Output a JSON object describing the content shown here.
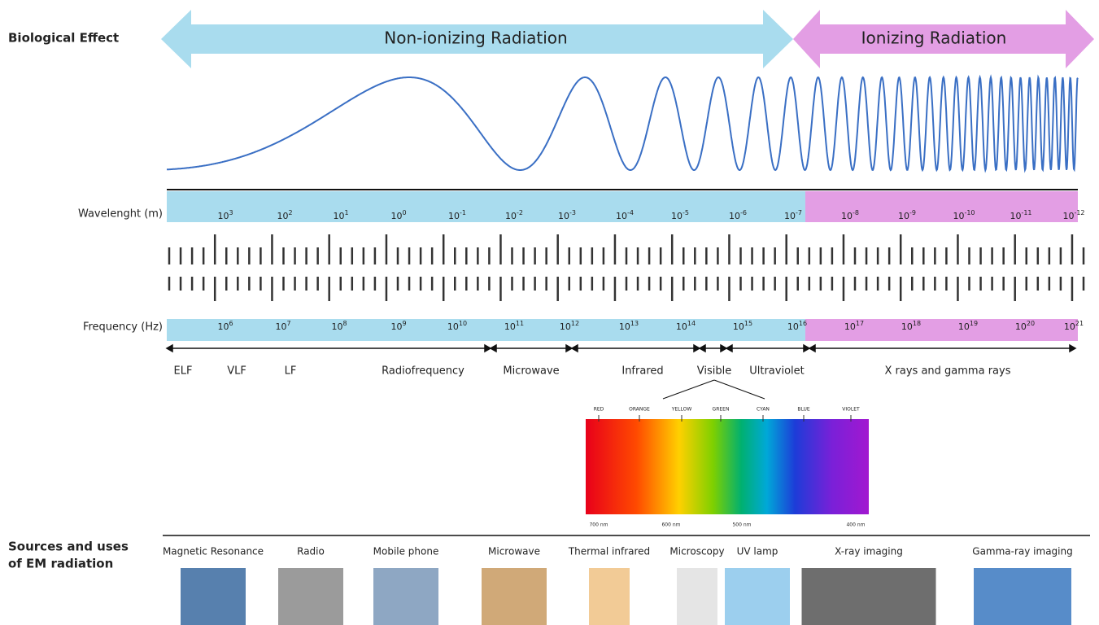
{
  "header": {
    "biological_effect": "Biological Effect",
    "non_ionizing": "Non-ionizing Radiation",
    "ionizing": "Ionizing Radiation"
  },
  "wavelength": {
    "label": "Wavelenght (m)",
    "ticks": [
      {
        "base": "10",
        "exponent": "3"
      },
      {
        "base": "10",
        "exponent": "2"
      },
      {
        "base": "10",
        "exponent": "1"
      },
      {
        "base": "10",
        "exponent": "0"
      },
      {
        "base": "10",
        "exponent": "-1"
      },
      {
        "base": "10",
        "exponent": "-2"
      },
      {
        "base": "10",
        "exponent": "-3"
      },
      {
        "base": "10",
        "exponent": "-4"
      },
      {
        "base": "10",
        "exponent": "-5"
      },
      {
        "base": "10",
        "exponent": "-6"
      },
      {
        "base": "10",
        "exponent": "-7"
      },
      {
        "base": "10",
        "exponent": "-8"
      },
      {
        "base": "10",
        "exponent": "-9"
      },
      {
        "base": "10",
        "exponent": "-10"
      },
      {
        "base": "10",
        "exponent": "-11"
      },
      {
        "base": "10",
        "exponent": "-12"
      }
    ]
  },
  "frequency": {
    "label": "Frequency (Hz)",
    "ticks": [
      {
        "base": "10",
        "exponent": "6"
      },
      {
        "base": "10",
        "exponent": "7"
      },
      {
        "base": "10",
        "exponent": "8"
      },
      {
        "base": "10",
        "exponent": "9"
      },
      {
        "base": "10",
        "exponent": "10"
      },
      {
        "base": "10",
        "exponent": "11"
      },
      {
        "base": "10",
        "exponent": "12"
      },
      {
        "base": "10",
        "exponent": "13"
      },
      {
        "base": "10",
        "exponent": "14"
      },
      {
        "base": "10",
        "exponent": "15"
      },
      {
        "base": "10",
        "exponent": "16"
      },
      {
        "base": "10",
        "exponent": "17"
      },
      {
        "base": "10",
        "exponent": "18"
      },
      {
        "base": "10",
        "exponent": "19"
      },
      {
        "base": "10",
        "exponent": "20"
      },
      {
        "base": "10",
        "exponent": "21"
      }
    ]
  },
  "bands": [
    "ELF",
    "VLF",
    "LF",
    "Radiofrequency",
    "Microwave",
    "Infrared",
    "Visible",
    "Ultraviolet",
    "X rays and gamma rays"
  ],
  "visible_spectrum": {
    "colors": [
      "RED",
      "ORANGE",
      "YELLOW",
      "GREEN",
      "CYAN",
      "BLUE",
      "VIOLET"
    ],
    "wavelengths": [
      "700 nm",
      "600 nm",
      "500 nm",
      "400 nm"
    ]
  },
  "sources": {
    "title_line1": "Sources and uses",
    "title_line2": "of EM radiation",
    "items": [
      "Magnetic Resonance",
      "Radio",
      "Mobile phone",
      "Microwave",
      "Thermal infrared",
      "Microscopy",
      "UV lamp",
      "X-ray imaging",
      "Gamma-ray imaging"
    ]
  }
}
